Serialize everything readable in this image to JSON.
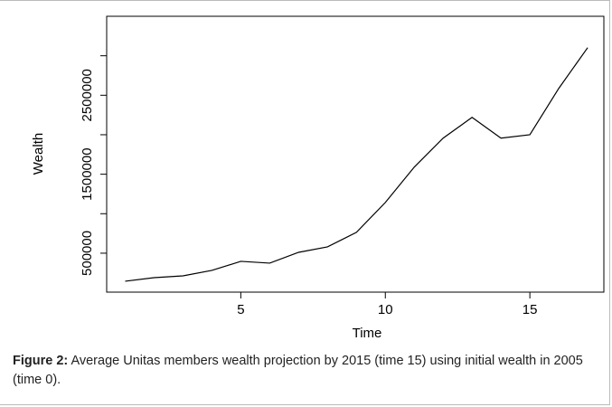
{
  "chart_data": {
    "type": "line",
    "xlabel": "Time",
    "ylabel": "Wealth",
    "x": [
      1,
      2,
      3,
      4,
      5,
      6,
      7,
      8,
      9,
      10,
      11,
      12,
      13,
      14,
      15,
      16,
      17
    ],
    "series": [
      {
        "color": "#000000",
        "values": [
          145000,
          190000,
          213000,
          282000,
          397000,
          374000,
          511000,
          580000,
          764000,
          1142000,
          1590000,
          1957000,
          2220000,
          1957000,
          2000000,
          2587000,
          3103000
        ]
      }
    ],
    "xlim": [
      0.36,
      17.56
    ],
    "xticks": [
      5,
      10,
      15
    ],
    "ylim": [
      0,
      3500000
    ],
    "yticks": [
      500000,
      1500000,
      2500000
    ],
    "yminor_ticks": [
      1000000,
      2000000,
      3000000
    ]
  },
  "caption": {
    "label": "Figure 2:",
    "text": " Average Unitas members wealth projection by 2015 (time 15) using initial wealth in 2005 (time 0)."
  }
}
